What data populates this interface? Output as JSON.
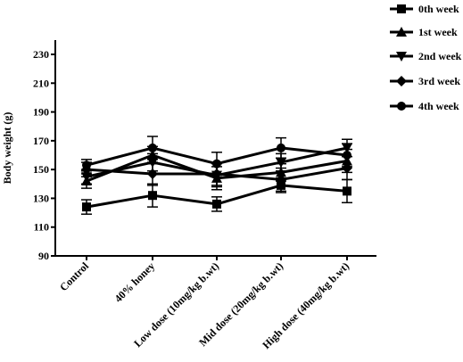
{
  "chart_data": {
    "type": "line",
    "xlabel": "",
    "ylabel": "Body weight (g)",
    "ylim": [
      90,
      240
    ],
    "yticks": [
      90,
      110,
      130,
      150,
      170,
      190,
      210,
      230
    ],
    "categories": [
      "Control",
      "40% honey",
      "Low dose (10mg/kg b.wt)",
      "Mid dose (20mg/kg b.wt)",
      "High dose (40mg/kg b.wt)"
    ],
    "legend_position": "top-right",
    "grid": false,
    "series": [
      {
        "name": "0th week",
        "marker": "square",
        "values": [
          124,
          132,
          126,
          139,
          135
        ],
        "errors": [
          5,
          8,
          5,
          5,
          8
        ]
      },
      {
        "name": "1st week",
        "marker": "triangle-up",
        "values": [
          142,
          160,
          144,
          148,
          156
        ],
        "errors": [
          5,
          6,
          8,
          6,
          8
        ]
      },
      {
        "name": "2nd week",
        "marker": "triangle-down",
        "values": [
          145,
          155,
          146,
          155,
          165
        ],
        "errors": [
          5,
          6,
          8,
          6,
          6
        ]
      },
      {
        "name": "3rd week",
        "marker": "diamond",
        "values": [
          150,
          147,
          147,
          143,
          151
        ],
        "errors": [
          5,
          8,
          8,
          8,
          8
        ]
      },
      {
        "name": "4th week",
        "marker": "circle",
        "values": [
          153,
          165,
          154,
          165,
          160
        ],
        "errors": [
          4,
          8,
          8,
          7,
          8
        ]
      }
    ]
  }
}
